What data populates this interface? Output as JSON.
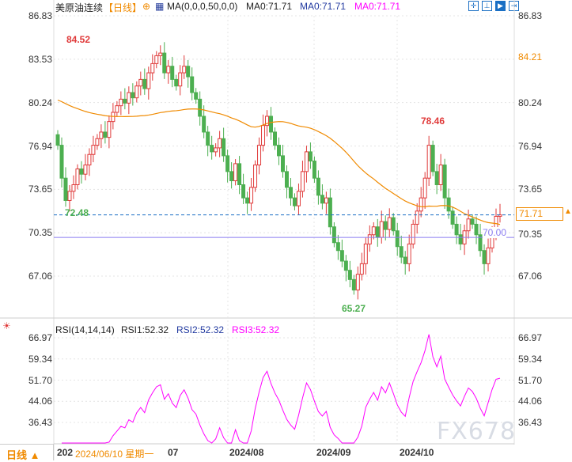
{
  "header": {
    "symbol": "美原油连续",
    "period": "【日线】",
    "ma_label": "MA(0,0,0,50,0,0)",
    "ma1": "MA0:71.71",
    "ma2": "MA0:71.71",
    "ma3": "MA0:71.71"
  },
  "toolbar": [
    "crosshair-icon",
    "range-icon",
    "zoom-icon",
    "exit-icon"
  ],
  "price_axis": {
    "ticks": [
      "86.83",
      "83.53",
      "80.24",
      "76.94",
      "73.65",
      "70.35",
      "67.06"
    ],
    "right_labels": {
      "high_marker": "84.21",
      "current": "71.71",
      "ma_marker": "70.00"
    }
  },
  "annotations": {
    "high": "84.52",
    "low": "65.27",
    "left_low": "72.48",
    "recent_high": "78.46"
  },
  "rsi": {
    "label": "RSI(14,14,14)",
    "rsi1": "RSI1:52.32",
    "rsi2": "RSI2:52.32",
    "rsi3": "RSI3:52.32",
    "ticks": [
      "66.97",
      "59.34",
      "51.70",
      "44.06",
      "36.43"
    ]
  },
  "date_axis": {
    "period_button": "日线 ▲",
    "start": "202",
    "cursor_date": "2024/06/10 星期一",
    "m7": "07",
    "m8": "2024/08",
    "m9": "2024/09",
    "m10": "2024/10"
  },
  "watermark": "FX678",
  "colors": {
    "up": "#e03a3a",
    "down": "#4caf50",
    "ma": "#f08a00",
    "rsi": "#ff00ff",
    "dash": "#1a6fc4",
    "purple": "#8a7cf0"
  },
  "chart_data": {
    "type": "candlestick",
    "closes": [
      77.0,
      74.5,
      72.8,
      73.5,
      74.0,
      75.2,
      74.8,
      75.5,
      76.3,
      77.0,
      77.5,
      78.0,
      77.6,
      78.8,
      79.5,
      80.0,
      80.5,
      80.2,
      81.0,
      80.6,
      81.5,
      82.0,
      81.3,
      82.5,
      83.2,
      83.8,
      84.0,
      82.5,
      83.0,
      82.0,
      81.5,
      82.5,
      83.0,
      82.2,
      81.0,
      80.5,
      79.2,
      78.0,
      77.0,
      76.5,
      76.8,
      77.5,
      76.2,
      75.0,
      74.3,
      75.6,
      74.0,
      73.0,
      72.6,
      73.8,
      75.5,
      77.0,
      78.5,
      79.2,
      78.0,
      77.0,
      76.2,
      75.0,
      73.8,
      73.0,
      72.4,
      73.5,
      75.0,
      76.5,
      75.8,
      74.5,
      73.2,
      72.6,
      73.0,
      70.8,
      69.6,
      69.0,
      68.2,
      67.5,
      66.8,
      66.0,
      67.2,
      68.0,
      69.5,
      70.2,
      70.8,
      70.0,
      71.2,
      70.6,
      71.5,
      70.5,
      69.3,
      68.5,
      68.0,
      69.5,
      71.0,
      72.0,
      73.0,
      74.5,
      77.0,
      75.0,
      74.0,
      75.5,
      73.0,
      72.0,
      71.0,
      70.2,
      69.5,
      70.5,
      71.4,
      71.0,
      70.2,
      69.0,
      68.0,
      69.2,
      70.5,
      71.6,
      71.71
    ],
    "ylim": [
      67.06,
      86.83
    ],
    "ma_period": 50,
    "rsi_ylim": [
      36.43,
      66.97
    ]
  }
}
